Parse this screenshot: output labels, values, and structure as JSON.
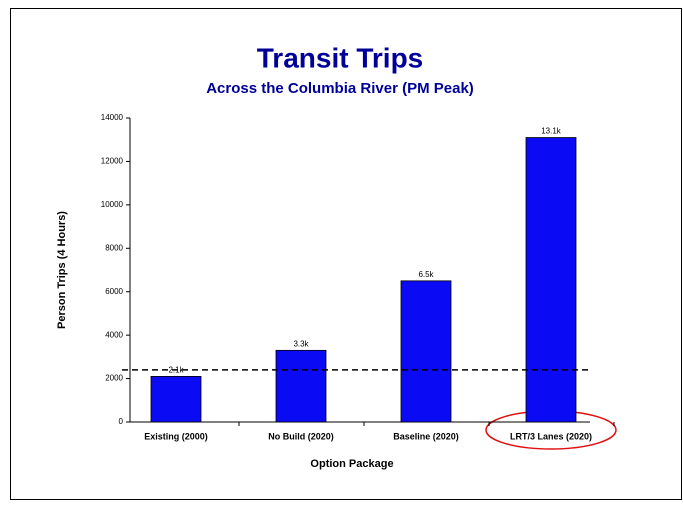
{
  "chart_data": {
    "type": "bar",
    "title": "Transit Trips",
    "subtitle": "Across the Columbia River (PM Peak)",
    "x_label": "Option Package",
    "y_label": "Person Trips (4 Hours)",
    "categories": [
      "Existing (2000)",
      "No Build (2020)",
      "Baseline (2020)",
      "LRT/3 Lanes (2020)"
    ],
    "values": [
      2100,
      3300,
      6500,
      13100
    ],
    "value_labels": [
      "2.1k",
      "3.3k",
      "6.5k",
      "13.1k"
    ],
    "color": "#0a0af5",
    "reference_line": 2400,
    "ylim": [
      0,
      14000
    ],
    "yticks": [
      0,
      2000,
      4000,
      6000,
      8000,
      10000,
      12000,
      14000
    ]
  }
}
